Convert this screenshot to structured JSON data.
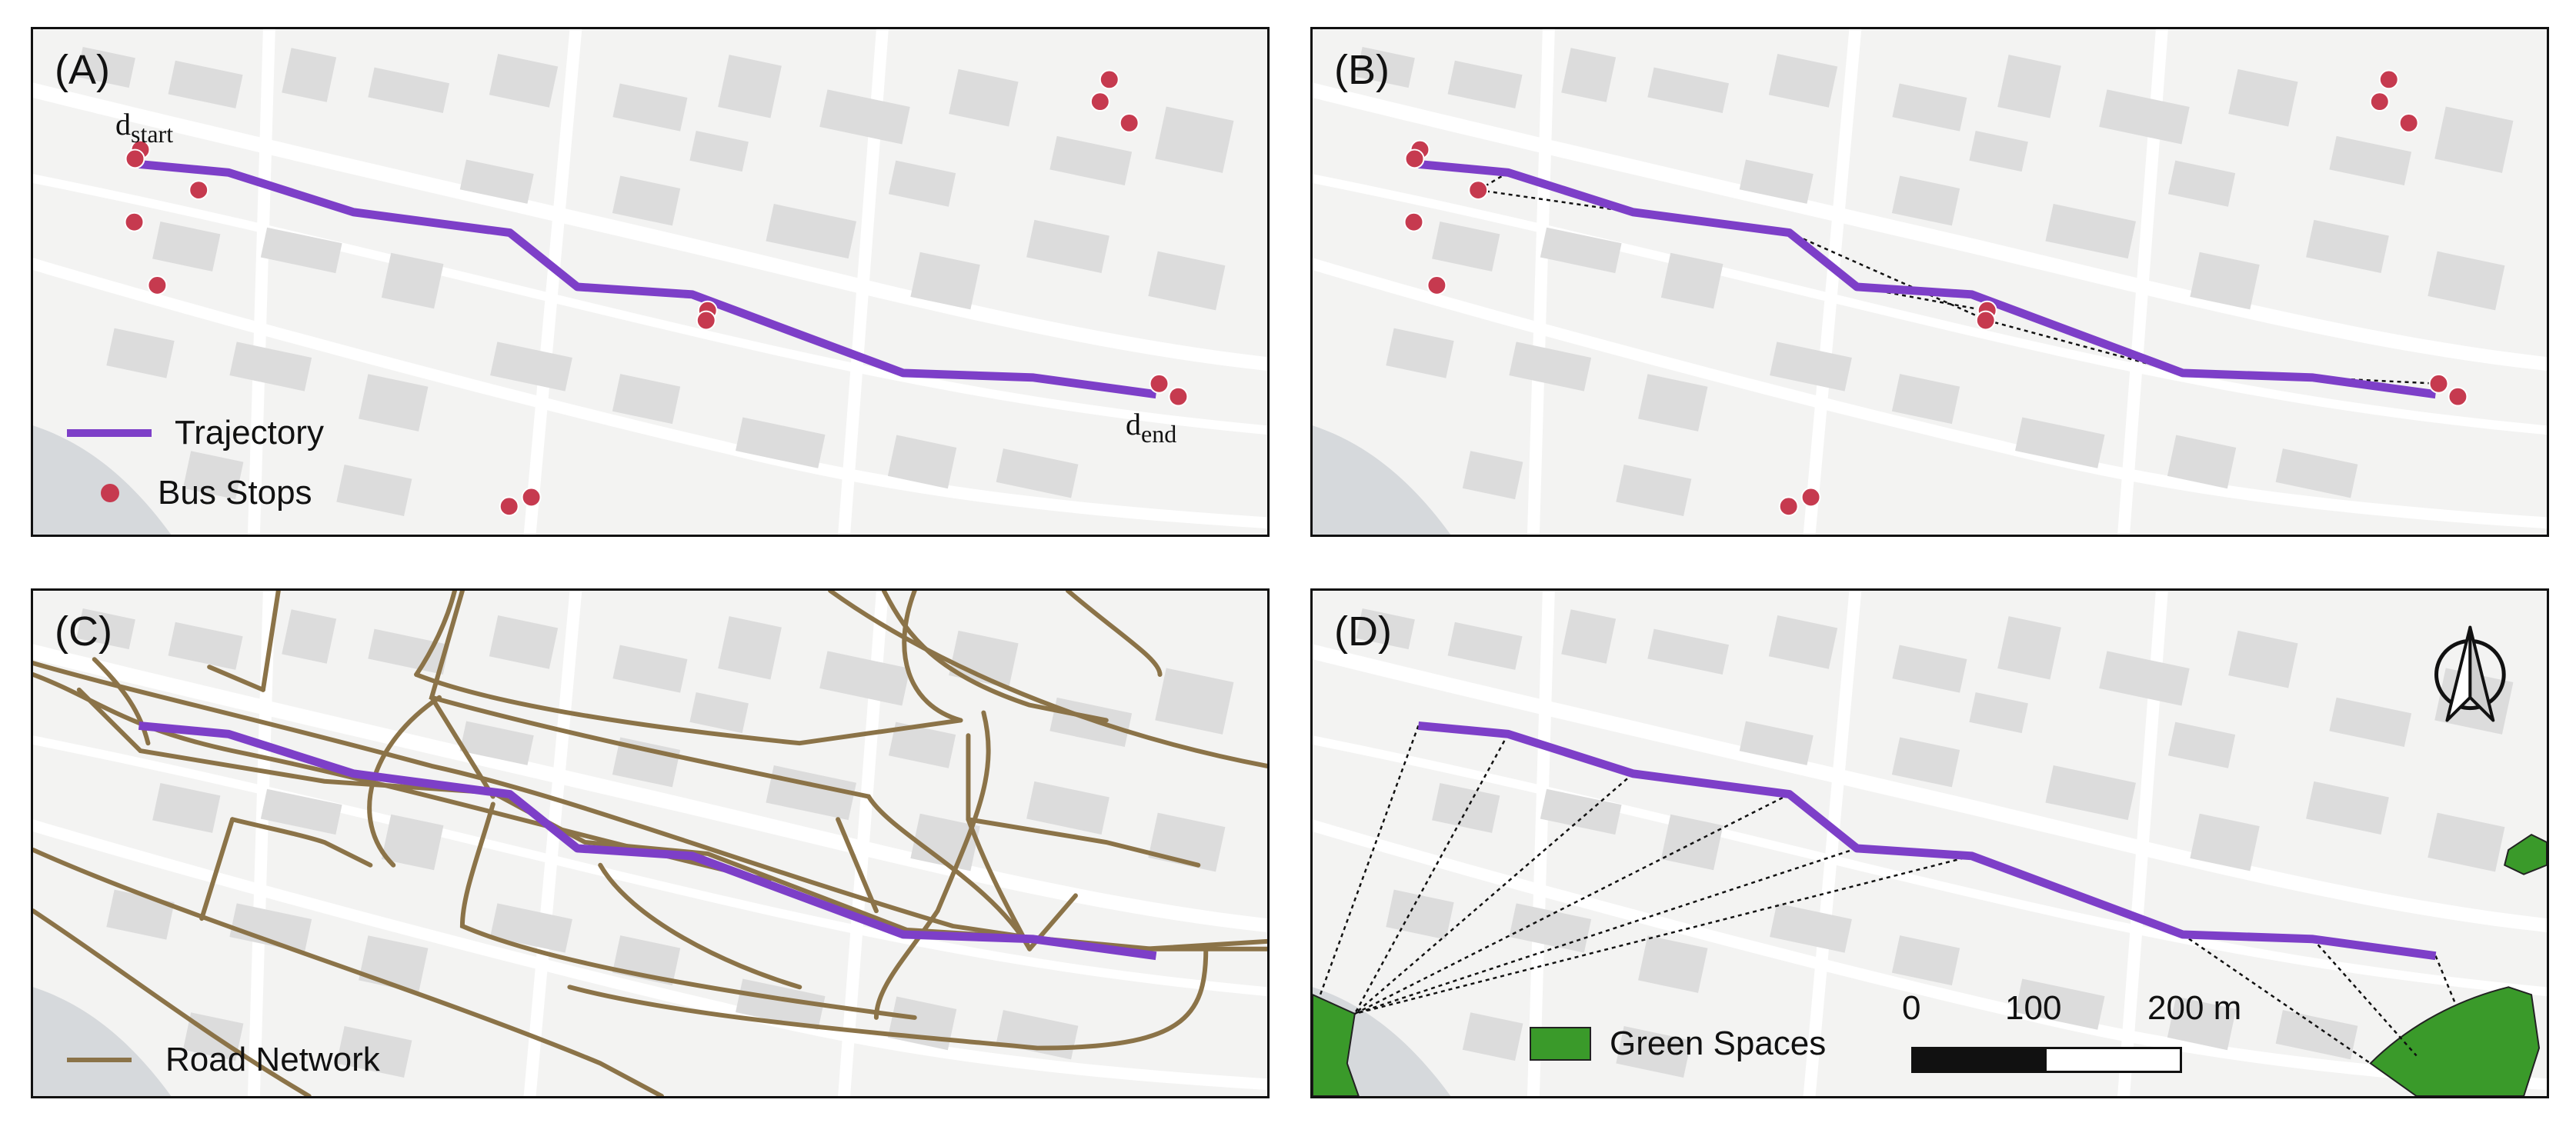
{
  "panels": {
    "a": {
      "label": "(A)",
      "start_label": "d",
      "start_sub": "start",
      "end_label": "d",
      "end_sub": "end"
    },
    "b": {
      "label": "(B)"
    },
    "c": {
      "label": "(C)"
    },
    "d": {
      "label": "(D)"
    }
  },
  "legend": {
    "trajectory": "Trajectory",
    "bus_stops": "Bus Stops",
    "road_network": "Road Network",
    "green_spaces": "Green Spaces"
  },
  "scale": {
    "t0": "0",
    "t1": "100",
    "t2": "200 m"
  },
  "colors": {
    "trajectory": "#7d3fc8",
    "bus_stop": "#c63a4f",
    "road": "#8b7348",
    "green": "#3a9a2a",
    "map_bg": "#f3f3f2",
    "building": "#dcdcdc"
  },
  "icons": {
    "north_arrow": "north-arrow-icon"
  }
}
